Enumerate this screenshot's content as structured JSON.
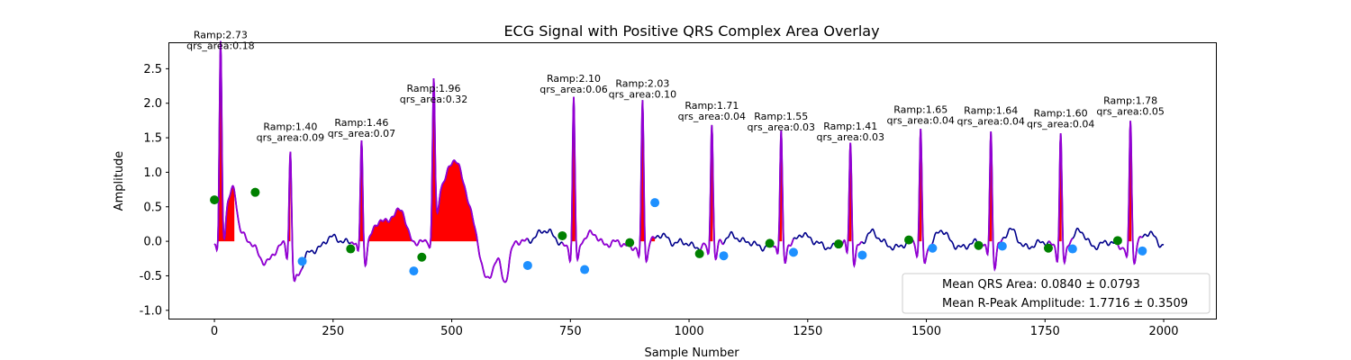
{
  "chart_data": {
    "type": "line",
    "title": "ECG Signal with Positive QRS Complex Area Overlay",
    "xlabel": "Sample Number",
    "ylabel": "Amplitude",
    "xlim": [
      -95,
      2110
    ],
    "ylim": [
      -1.12,
      2.87
    ],
    "xticks": [
      0,
      250,
      500,
      750,
      1000,
      1250,
      1500,
      1750,
      2000
    ],
    "yticks": [
      -1.0,
      -0.5,
      0.0,
      0.5,
      1.0,
      1.5,
      2.0,
      2.5
    ],
    "grid": false,
    "colors": {
      "signal": "#00008b",
      "qrs_segment": "#9400d3",
      "area_fill": "#ff0000",
      "onset_marker": "#008000",
      "offset_marker": "#1e90ff"
    },
    "r_peaks": [
      {
        "x": 13,
        "amp": 2.73,
        "ramp": "Ramp:2.73",
        "area": "qrs_area:0.18"
      },
      {
        "x": 160,
        "amp": 1.4,
        "ramp": "Ramp:1.40",
        "area": "qrs_area:0.09"
      },
      {
        "x": 310,
        "amp": 1.46,
        "ramp": "Ramp:1.46",
        "area": "qrs_area:0.07"
      },
      {
        "x": 462,
        "amp": 1.96,
        "ramp": "Ramp:1.96",
        "area": "qrs_area:0.32"
      },
      {
        "x": 757,
        "amp": 2.1,
        "ramp": "Ramp:2.10",
        "area": "qrs_area:0.06"
      },
      {
        "x": 902,
        "amp": 2.03,
        "ramp": "Ramp:2.03",
        "area": "qrs_area:0.10"
      },
      {
        "x": 1048,
        "amp": 1.71,
        "ramp": "Ramp:1.71",
        "area": "qrs_area:0.04"
      },
      {
        "x": 1194,
        "amp": 1.55,
        "ramp": "Ramp:1.55",
        "area": "qrs_area:0.03"
      },
      {
        "x": 1340,
        "amp": 1.41,
        "ramp": "Ramp:1.41",
        "area": "qrs_area:0.03"
      },
      {
        "x": 1488,
        "amp": 1.65,
        "ramp": "Ramp:1.65",
        "area": "qrs_area:0.04"
      },
      {
        "x": 1636,
        "amp": 1.64,
        "ramp": "Ramp:1.64",
        "area": "qrs_area:0.04"
      },
      {
        "x": 1783,
        "amp": 1.6,
        "ramp": "Ramp:1.60",
        "area": "qrs_area:0.04"
      },
      {
        "x": 1930,
        "amp": 1.78,
        "ramp": "Ramp:1.78",
        "area": "qrs_area:0.05"
      }
    ],
    "qrs_onsets": [
      {
        "x": 0,
        "y": 0.6
      },
      {
        "x": 86,
        "y": 0.71
      },
      {
        "x": 287,
        "y": -0.11
      },
      {
        "x": 437,
        "y": -0.23
      },
      {
        "x": 733,
        "y": 0.08
      },
      {
        "x": 875,
        "y": -0.02
      },
      {
        "x": 1022,
        "y": -0.18
      },
      {
        "x": 1170,
        "y": -0.03
      },
      {
        "x": 1315,
        "y": -0.04
      },
      {
        "x": 1463,
        "y": 0.02
      },
      {
        "x": 1610,
        "y": -0.06
      },
      {
        "x": 1757,
        "y": -0.1
      },
      {
        "x": 1903,
        "y": 0.01
      }
    ],
    "qrs_offsets": [
      {
        "x": 185,
        "y": -0.29
      },
      {
        "x": 420,
        "y": -0.43
      },
      {
        "x": 660,
        "y": -0.35
      },
      {
        "x": 780,
        "y": -0.41
      },
      {
        "x": 928,
        "y": 0.56
      },
      {
        "x": 1073,
        "y": -0.21
      },
      {
        "x": 1220,
        "y": -0.16
      },
      {
        "x": 1365,
        "y": -0.2
      },
      {
        "x": 1513,
        "y": -0.1
      },
      {
        "x": 1660,
        "y": -0.07
      },
      {
        "x": 1808,
        "y": -0.11
      },
      {
        "x": 1955,
        "y": -0.14
      }
    ],
    "legend": {
      "placement": "lower-right",
      "entries": [
        "Mean QRS Area: 0.0840 ± 0.0793",
        "Mean R-Peak Amplitude: 1.7716 ± 0.3509"
      ]
    }
  }
}
